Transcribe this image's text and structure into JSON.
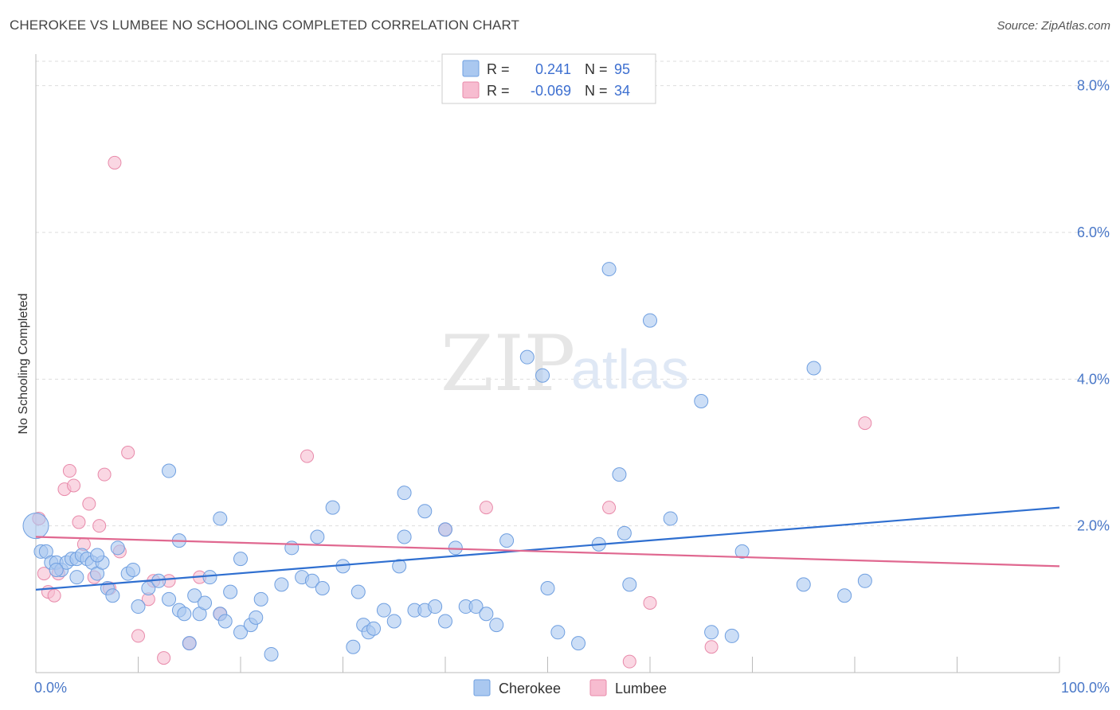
{
  "title": "CHEROKEE VS LUMBEE NO SCHOOLING COMPLETED CORRELATION CHART",
  "source": "Source: ZipAtlas.com",
  "watermark": {
    "zip": "ZIP",
    "atlas": "atlas"
  },
  "colors": {
    "cherokee_fill": "#aac8f0",
    "cherokee_stroke": "#6f9fe0",
    "cherokee_line": "#2f6fd0",
    "lumbee_fill": "#f7bcd0",
    "lumbee_stroke": "#e88aaa",
    "lumbee_line": "#e06890",
    "grid": "#dddddd",
    "tick_text": "#4a78c8"
  },
  "legend_box": {
    "rows": [
      {
        "r_label": "R =",
        "r_value": "0.241",
        "n_label": "N =",
        "n_value": "95"
      },
      {
        "r_label": "R =",
        "r_value": "-0.069",
        "n_label": "N =",
        "n_value": "34"
      }
    ]
  },
  "bottom_legend": [
    "Cherokee",
    "Lumbee"
  ],
  "chart_data": {
    "type": "scatter",
    "xlabel": "",
    "ylabel": "No Schooling Completed",
    "xlim": [
      0,
      100
    ],
    "ylim": [
      0,
      8.3
    ],
    "x_tick_labels": [
      "0.0%",
      "100.0%"
    ],
    "y_ticks": [
      2.0,
      4.0,
      6.0,
      8.0
    ],
    "y_tick_labels": [
      "2.0%",
      "4.0%",
      "6.0%",
      "8.0%"
    ],
    "grid": "horizontal dashed",
    "series": [
      {
        "name": "Cherokee",
        "trend": [
          [
            0,
            1.13
          ],
          [
            100,
            2.25
          ]
        ],
        "points": [
          [
            0.0,
            2.0
          ],
          [
            0.5,
            1.65
          ],
          [
            1.0,
            1.65
          ],
          [
            1.5,
            1.5
          ],
          [
            2.0,
            1.5
          ],
          [
            2.5,
            1.4
          ],
          [
            3.0,
            1.5
          ],
          [
            3.5,
            1.55
          ],
          [
            4.0,
            1.55
          ],
          [
            4.5,
            1.6
          ],
          [
            5.0,
            1.55
          ],
          [
            5.5,
            1.5
          ],
          [
            6.0,
            1.35
          ],
          [
            6.5,
            1.5
          ],
          [
            7.0,
            1.15
          ],
          [
            7.5,
            1.05
          ],
          [
            8.0,
            1.7
          ],
          [
            9.0,
            1.35
          ],
          [
            9.5,
            1.4
          ],
          [
            10.0,
            0.9
          ],
          [
            11.0,
            1.15
          ],
          [
            12.0,
            1.25
          ],
          [
            13.0,
            1.0
          ],
          [
            14.0,
            0.85
          ],
          [
            14.5,
            0.8
          ],
          [
            15.0,
            0.4
          ],
          [
            15.5,
            1.05
          ],
          [
            16.0,
            0.8
          ],
          [
            16.5,
            0.95
          ],
          [
            17.0,
            1.3
          ],
          [
            18.0,
            0.8
          ],
          [
            18.5,
            0.7
          ],
          [
            19.0,
            1.1
          ],
          [
            20.0,
            0.55
          ],
          [
            21.0,
            0.65
          ],
          [
            21.5,
            0.75
          ],
          [
            22.0,
            1.0
          ],
          [
            23.0,
            0.25
          ],
          [
            24.0,
            1.2
          ],
          [
            25.0,
            1.7
          ],
          [
            26.0,
            1.3
          ],
          [
            27.0,
            1.25
          ],
          [
            27.5,
            1.85
          ],
          [
            28.0,
            1.15
          ],
          [
            29.0,
            2.25
          ],
          [
            30.0,
            1.45
          ],
          [
            31.0,
            0.35
          ],
          [
            31.5,
            1.1
          ],
          [
            32.0,
            0.65
          ],
          [
            32.5,
            0.55
          ],
          [
            33.0,
            0.6
          ],
          [
            34.0,
            0.85
          ],
          [
            35.0,
            0.7
          ],
          [
            35.5,
            1.45
          ],
          [
            36.0,
            1.85
          ],
          [
            37.0,
            0.85
          ],
          [
            38.0,
            0.85
          ],
          [
            39.0,
            0.9
          ],
          [
            40.0,
            0.7
          ],
          [
            41.0,
            1.7
          ],
          [
            42.0,
            0.9
          ],
          [
            43.0,
            0.9
          ],
          [
            44.0,
            0.8
          ],
          [
            45.0,
            0.65
          ],
          [
            46.0,
            1.8
          ],
          [
            48.0,
            4.3
          ],
          [
            49.5,
            4.05
          ],
          [
            50.0,
            1.15
          ],
          [
            51.0,
            0.55
          ],
          [
            53.0,
            0.4
          ],
          [
            55.0,
            1.75
          ],
          [
            56.0,
            5.5
          ],
          [
            57.0,
            2.7
          ],
          [
            57.5,
            1.9
          ],
          [
            58.0,
            1.2
          ],
          [
            60.0,
            4.8
          ],
          [
            62.0,
            2.1
          ],
          [
            65.0,
            3.7
          ],
          [
            66.0,
            0.55
          ],
          [
            68.0,
            0.5
          ],
          [
            69.0,
            1.65
          ],
          [
            75.0,
            1.2
          ],
          [
            76.0,
            4.15
          ],
          [
            79.0,
            1.05
          ],
          [
            81.0,
            1.25
          ],
          [
            36.0,
            2.45
          ],
          [
            38.0,
            2.2
          ],
          [
            40.0,
            1.95
          ],
          [
            13.0,
            2.75
          ],
          [
            14.0,
            1.8
          ],
          [
            18.0,
            2.1
          ],
          [
            20.0,
            1.55
          ],
          [
            2.0,
            1.4
          ],
          [
            4.0,
            1.3
          ],
          [
            6.0,
            1.6
          ]
        ]
      },
      {
        "name": "Lumbee",
        "trend": [
          [
            0,
            1.85
          ],
          [
            100,
            1.45
          ]
        ],
        "points": [
          [
            0.3,
            2.1
          ],
          [
            0.8,
            1.35
          ],
          [
            1.2,
            1.1
          ],
          [
            1.8,
            1.05
          ],
          [
            2.2,
            1.35
          ],
          [
            2.8,
            2.5
          ],
          [
            3.3,
            2.75
          ],
          [
            3.7,
            2.55
          ],
          [
            4.2,
            2.05
          ],
          [
            4.7,
            1.75
          ],
          [
            5.2,
            2.3
          ],
          [
            5.7,
            1.3
          ],
          [
            6.2,
            2.0
          ],
          [
            6.7,
            2.7
          ],
          [
            7.2,
            1.15
          ],
          [
            7.7,
            6.95
          ],
          [
            8.2,
            1.65
          ],
          [
            9.0,
            3.0
          ],
          [
            10.0,
            0.5
          ],
          [
            11.0,
            1.0
          ],
          [
            11.5,
            1.25
          ],
          [
            12.5,
            0.2
          ],
          [
            13.0,
            1.25
          ],
          [
            15.0,
            0.4
          ],
          [
            16.0,
            1.3
          ],
          [
            18.0,
            0.8
          ],
          [
            26.5,
            2.95
          ],
          [
            40.0,
            1.95
          ],
          [
            44.0,
            2.25
          ],
          [
            56.0,
            2.25
          ],
          [
            58.0,
            0.15
          ],
          [
            60.0,
            0.95
          ],
          [
            66.0,
            0.35
          ],
          [
            81.0,
            3.4
          ]
        ]
      }
    ]
  }
}
